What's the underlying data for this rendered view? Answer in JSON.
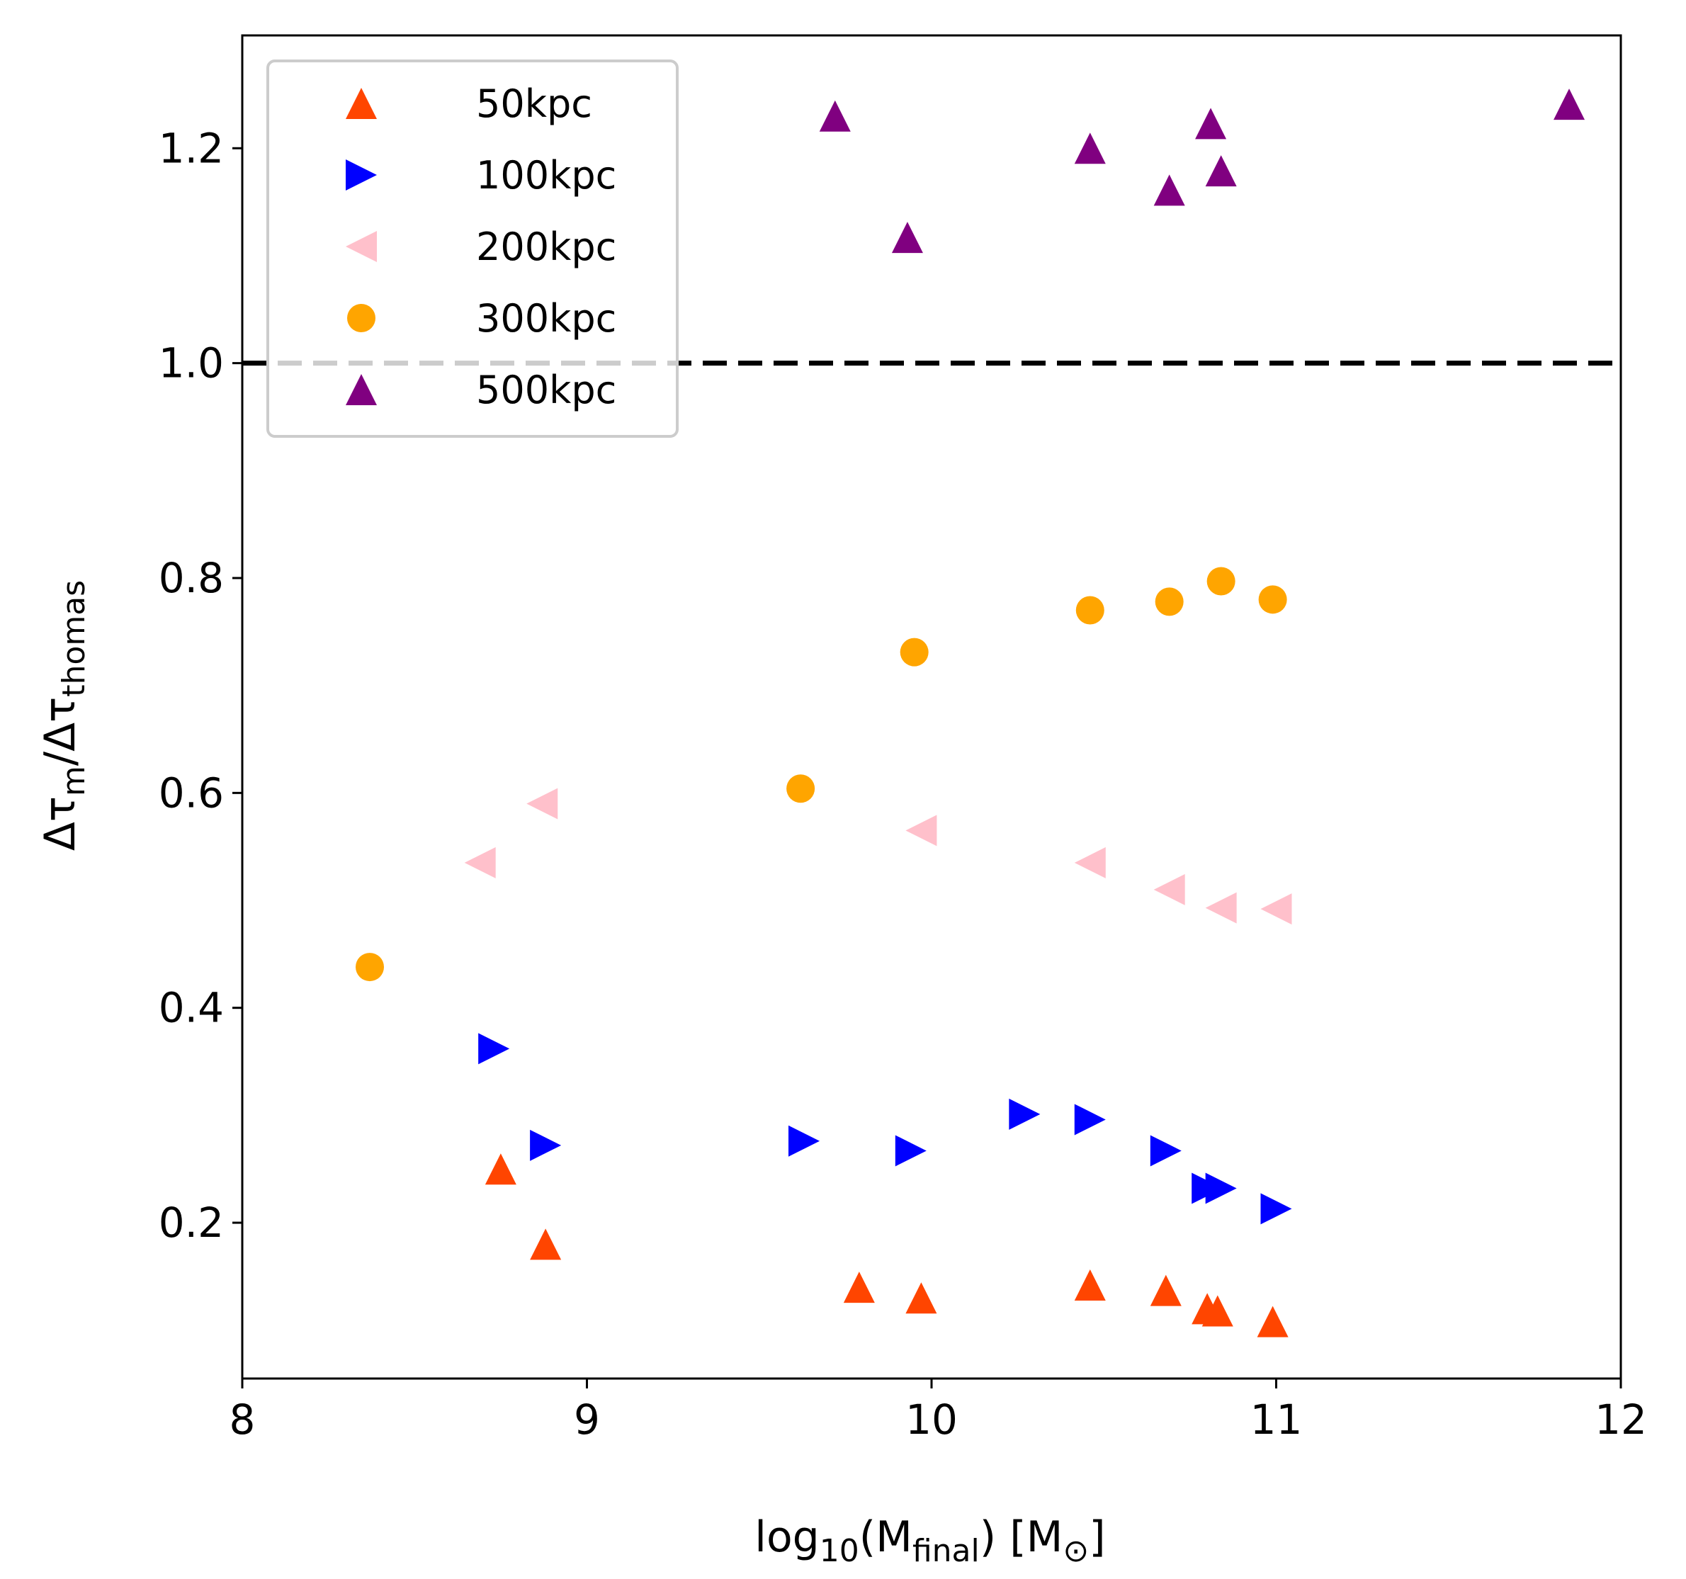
{
  "chart_data": {
    "type": "scatter",
    "title": "",
    "xlabel": {
      "prefix": "log",
      "sub": "10",
      "mid": "(M",
      "sub2": "final",
      "suffix": ") [M",
      "sub3": "⊙",
      "end": "]"
    },
    "ylabel": {
      "p1": "Δτ",
      "s1": "m",
      "p2": "/Δτ",
      "s2": "thomas"
    },
    "xlim": [
      8,
      12
    ],
    "ylim": [
      0.055,
      1.305
    ],
    "xticks": [
      8,
      9,
      10,
      11,
      12
    ],
    "xtick_labels": [
      "8",
      "9",
      "10",
      "11",
      "12"
    ],
    "yticks": [
      0.2,
      0.4,
      0.6,
      0.8,
      1.0,
      1.2
    ],
    "ytick_labels": [
      "0.2",
      "0.4",
      "0.6",
      "0.8",
      "1.0",
      "1.2"
    ],
    "grid": false,
    "legend_position": "top-left",
    "reference_line": {
      "y": 1.0,
      "style": "dashed",
      "color": "#000000"
    },
    "series": [
      {
        "name": "50kpc",
        "marker": "triangle-up",
        "color": "#FF4500",
        "x": [
          8.75,
          8.88,
          9.79,
          9.97,
          10.46,
          10.68,
          10.8,
          10.83,
          10.99
        ],
        "y": [
          0.25,
          0.18,
          0.14,
          0.13,
          0.142,
          0.137,
          0.12,
          0.118,
          0.108
        ]
      },
      {
        "name": "100kpc",
        "marker": "triangle-right",
        "color": "#0000FF",
        "x": [
          8.73,
          8.88,
          9.63,
          9.94,
          10.27,
          10.46,
          10.68,
          10.8,
          10.84,
          11.0
        ],
        "y": [
          0.362,
          0.272,
          0.276,
          0.267,
          0.301,
          0.296,
          0.267,
          0.232,
          0.232,
          0.213
        ]
      },
      {
        "name": "200kpc",
        "marker": "triangle-left",
        "color": "#FFC0CB",
        "x": [
          8.69,
          8.87,
          9.97,
          10.46,
          10.69,
          10.84,
          11.0
        ],
        "y": [
          0.535,
          0.59,
          0.565,
          0.535,
          0.51,
          0.493,
          0.492
        ]
      },
      {
        "name": "300kpc",
        "marker": "circle",
        "color": "#FFA500",
        "x": [
          8.37,
          9.62,
          9.95,
          10.46,
          10.69,
          10.84,
          10.99
        ],
        "y": [
          0.438,
          0.604,
          0.731,
          0.77,
          0.778,
          0.797,
          0.78
        ]
      },
      {
        "name": "500kpc",
        "marker": "triangle-up",
        "color": "#800080",
        "x": [
          9.72,
          9.93,
          10.46,
          10.69,
          10.81,
          10.84,
          11.85
        ],
        "y": [
          1.23,
          1.117,
          1.2,
          1.161,
          1.223,
          1.179,
          1.241
        ]
      }
    ]
  }
}
